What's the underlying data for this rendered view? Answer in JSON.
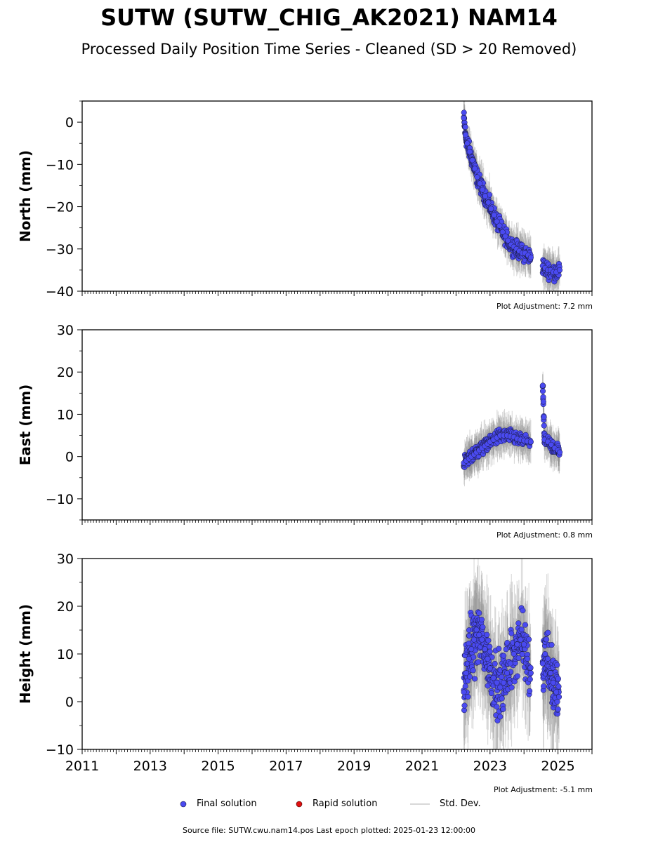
{
  "title": "SUTW (SUTW_CHIG_AK2021) NAM14",
  "subtitle": "Processed Daily Position Time Series - Cleaned (SD > 20 Removed)",
  "colors": {
    "final": "#4a4af0",
    "final_edge": "#1a1a40",
    "rapid": "#e01010",
    "std": "#888888"
  },
  "legend": {
    "final": "Final solution",
    "rapid": "Rapid solution",
    "std": "Std. Dev."
  },
  "footer": "Source file: SUTW.cwu.nam14.pos  Last epoch plotted: 2025-01-23 12:00:00",
  "chart_data": [
    {
      "type": "scatter",
      "ylabel": "North (mm)",
      "ylim": [
        -40,
        5
      ],
      "yticks": [
        0,
        -10,
        -20,
        -30,
        -40
      ],
      "xlim": [
        2011,
        2026
      ],
      "adjustment": "Plot Adjustment: 7.2 mm",
      "series": [
        {
          "name": "Final solution",
          "x": [
            2022.23,
            2022.28,
            2022.33,
            2022.4,
            2022.48,
            2022.55,
            2022.62,
            2022.7,
            2022.78,
            2022.86,
            2022.95,
            2023.03,
            2023.12,
            2023.2,
            2023.28,
            2023.37,
            2023.45,
            2023.53,
            2023.62,
            2023.7,
            2023.78,
            2023.86,
            2023.95,
            2024.03,
            2024.12,
            2024.2,
            2024.55,
            2024.62,
            2024.7,
            2024.78,
            2024.86,
            2024.95,
            2025.05
          ],
          "y": [
            1,
            -3,
            -5,
            -7,
            -9,
            -11,
            -13,
            -14.5,
            -16,
            -17.5,
            -19,
            -20.5,
            -22,
            -23.5,
            -24.5,
            -26,
            -27,
            -28,
            -29,
            -29.5,
            -30,
            -30.5,
            -31,
            -31,
            -31.5,
            -32,
            -34,
            -34.5,
            -35,
            -35,
            -35.5,
            -35.5,
            -35
          ]
        }
      ]
    },
    {
      "type": "scatter",
      "ylabel": "East (mm)",
      "ylim": [
        -15,
        30
      ],
      "yticks": [
        30,
        20,
        10,
        0,
        -10
      ],
      "xlim": [
        2011,
        2026
      ],
      "adjustment": "Plot Adjustment: 0.8 mm",
      "series": [
        {
          "name": "Final solution",
          "x": [
            2022.23,
            2022.3,
            2022.38,
            2022.45,
            2022.53,
            2022.6,
            2022.68,
            2022.76,
            2022.85,
            2022.93,
            2023.0,
            2023.1,
            2023.2,
            2023.3,
            2023.4,
            2023.5,
            2023.6,
            2023.7,
            2023.8,
            2023.9,
            2024.0,
            2024.1,
            2024.2,
            2024.55,
            2024.6,
            2024.7,
            2024.8,
            2024.9,
            2025.0,
            2025.05
          ],
          "y": [
            -1.5,
            -1,
            -0.5,
            0,
            0.5,
            1,
            1.5,
            2,
            2.5,
            3,
            3.5,
            4,
            4.5,
            5,
            5,
            5,
            4.8,
            4.6,
            4.2,
            4,
            3.8,
            3.6,
            3.5,
            16.8,
            4,
            3.5,
            2.8,
            2,
            1.5,
            1
          ]
        }
      ]
    },
    {
      "type": "scatter",
      "ylabel": "Height (mm)",
      "ylim": [
        -10,
        30
      ],
      "yticks": [
        30,
        20,
        10,
        0,
        -10
      ],
      "xlim": [
        2011,
        2026
      ],
      "xticks": [
        2011,
        2013,
        2015,
        2017,
        2019,
        2021,
        2023,
        2025
      ],
      "adjustment": "Plot Adjustment: -5.1 mm",
      "series": [
        {
          "name": "Final solution",
          "x": [
            2022.23,
            2022.3,
            2022.38,
            2022.45,
            2022.53,
            2022.6,
            2022.68,
            2022.76,
            2022.85,
            2022.93,
            2023.0,
            2023.1,
            2023.2,
            2023.3,
            2023.4,
            2023.5,
            2023.6,
            2023.7,
            2023.8,
            2023.9,
            2024.0,
            2024.1,
            2024.2,
            2024.55,
            2024.62,
            2024.7,
            2024.78,
            2024.86,
            2024.95,
            2025.03
          ],
          "y": [
            2,
            6,
            9,
            11,
            13,
            14,
            14,
            13,
            11,
            9,
            7,
            5,
            4,
            3,
            4,
            6,
            8,
            10,
            12,
            13,
            12,
            9,
            6,
            8,
            10,
            9,
            6,
            4,
            2,
            1
          ]
        }
      ]
    }
  ]
}
